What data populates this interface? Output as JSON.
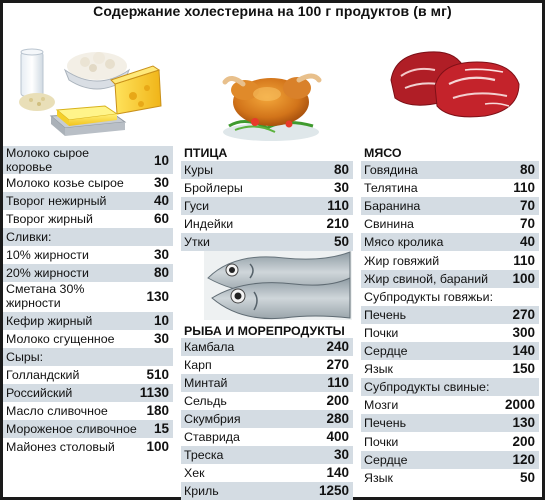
{
  "title": "Содержание холестерина на 100 г продуктов (в мг)",
  "col1": {
    "rows": [
      {
        "name": "Молоко сырое коровье",
        "value": "10",
        "tall": true
      },
      {
        "name": "Молоко козье сырое",
        "value": "30"
      },
      {
        "name": "Творог нежирный",
        "value": "40"
      },
      {
        "name": "Творог жирный",
        "value": "60"
      },
      {
        "name": "Сливки:",
        "value": ""
      },
      {
        "name": "10% жирности",
        "value": "30"
      },
      {
        "name": "20% жирности",
        "value": "80"
      },
      {
        "name": "Сметана 30% жирности",
        "value": "130",
        "tall": true
      },
      {
        "name": "Кефир жирный",
        "value": "10"
      },
      {
        "name": "Молоко сгущенное",
        "value": "30"
      },
      {
        "name": "Сыры:",
        "value": ""
      },
      {
        "name": "Голландский",
        "value": "510"
      },
      {
        "name": "Российский",
        "value": "1130"
      },
      {
        "name": "Масло сливочное",
        "value": "180"
      },
      {
        "name": "Мороженое сливочное",
        "value": "15"
      },
      {
        "name": "Майонез столовый",
        "value": "100"
      }
    ]
  },
  "col2": {
    "sections": [
      {
        "heading": "ПТИЦА",
        "rows": [
          {
            "name": "Куры",
            "value": "80"
          },
          {
            "name": "Бройлеры",
            "value": "30"
          },
          {
            "name": "Гуси",
            "value": "110"
          },
          {
            "name": "Индейки",
            "value": "210"
          },
          {
            "name": "Утки",
            "value": "50"
          }
        ]
      },
      {
        "heading": "РЫБА И МОРЕПРОДУКТЫ",
        "rows": [
          {
            "name": "Камбала",
            "value": "240"
          },
          {
            "name": "Карп",
            "value": "270"
          },
          {
            "name": "Минтай",
            "value": "110"
          },
          {
            "name": "Сельдь",
            "value": "200"
          },
          {
            "name": "Скумбрия",
            "value": "280"
          },
          {
            "name": "Ставрида",
            "value": "400"
          },
          {
            "name": "Треска",
            "value": "30"
          },
          {
            "name": "Хек",
            "value": "140"
          },
          {
            "name": "Криль",
            "value": "1250"
          }
        ]
      }
    ]
  },
  "col3": {
    "heading": "МЯСО",
    "rows": [
      {
        "name": "Говядина",
        "value": "80"
      },
      {
        "name": "Телятина",
        "value": "110"
      },
      {
        "name": "Баранина",
        "value": "70"
      },
      {
        "name": "Свинина",
        "value": "70"
      },
      {
        "name": "Мясо кролика",
        "value": "40"
      },
      {
        "name": "Жир говяжий",
        "value": "110"
      },
      {
        "name": "Жир свиной, бараний",
        "value": "100"
      },
      {
        "name": "Субпродукты говяжьи:",
        "value": ""
      },
      {
        "name": "Печень",
        "value": "270"
      },
      {
        "name": "Почки",
        "value": "300"
      },
      {
        "name": "Сердце",
        "value": "140"
      },
      {
        "name": "Язык",
        "value": "150"
      },
      {
        "name": "Субпродукты свиные:",
        "value": ""
      },
      {
        "name": "Мозги",
        "value": "2000"
      },
      {
        "name": "Печень",
        "value": "130"
      },
      {
        "name": "Почки",
        "value": "200"
      },
      {
        "name": "Сердце",
        "value": "120"
      },
      {
        "name": "Язык",
        "value": "50"
      }
    ]
  }
}
